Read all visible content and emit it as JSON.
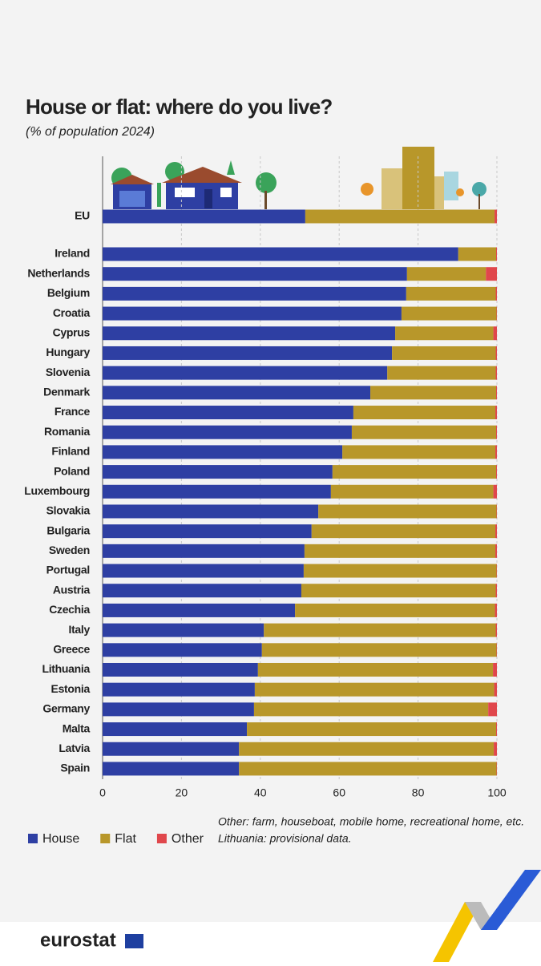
{
  "chart_data": {
    "type": "bar",
    "orientation": "horizontal",
    "stacked": true,
    "title": "House or flat: where do you live?",
    "subtitle": "(% of population 2024)",
    "categories": [
      "EU",
      "Ireland",
      "Netherlands",
      "Belgium",
      "Croatia",
      "Cyprus",
      "Hungary",
      "Slovenia",
      "Denmark",
      "France",
      "Romania",
      "Finland",
      "Poland",
      "Luxembourg",
      "Slovakia",
      "Bulgaria",
      "Sweden",
      "Portugal",
      "Austria",
      "Czechia",
      "Italy",
      "Greece",
      "Lithuania",
      "Estonia",
      "Germany",
      "Malta",
      "Latvia",
      "Spain"
    ],
    "series": [
      {
        "name": "House",
        "color": "#2e3fa3",
        "values": [
          51.4,
          90.2,
          77.2,
          77.0,
          75.8,
          74.2,
          73.4,
          72.2,
          67.9,
          63.6,
          63.2,
          60.8,
          58.3,
          57.9,
          54.7,
          53.0,
          51.2,
          51.0,
          50.4,
          48.8,
          40.9,
          40.4,
          39.4,
          38.6,
          38.4,
          36.6,
          34.6,
          34.6
        ]
      },
      {
        "name": "Flat",
        "color": "#b8972a",
        "values": [
          48.0,
          9.6,
          20.0,
          22.7,
          24.1,
          24.9,
          26.3,
          27.5,
          31.9,
          36.0,
          36.6,
          38.8,
          41.5,
          41.2,
          45.2,
          46.6,
          48.4,
          48.9,
          49.3,
          50.7,
          58.8,
          59.5,
          59.6,
          60.7,
          59.4,
          63.2,
          64.6,
          65.3
        ]
      },
      {
        "name": "Other",
        "color": "#e0474c",
        "values": [
          0.6,
          0.2,
          2.8,
          0.3,
          0.1,
          0.9,
          0.3,
          0.3,
          0.2,
          0.4,
          0.2,
          0.4,
          0.2,
          0.9,
          0.1,
          0.4,
          0.4,
          0.1,
          0.3,
          0.5,
          0.3,
          0.1,
          1.0,
          0.7,
          2.2,
          0.2,
          0.8,
          0.1
        ]
      }
    ],
    "xlim": [
      0,
      100
    ],
    "xticks": [
      0,
      20,
      40,
      60,
      80,
      100
    ],
    "grid": true,
    "legend": "bottom-left",
    "notes": [
      "Other: farm, houseboat, mobile home, recreational home, etc.",
      "Lithuania: provisional data."
    ]
  },
  "footer": {
    "logo": "eurostat"
  }
}
